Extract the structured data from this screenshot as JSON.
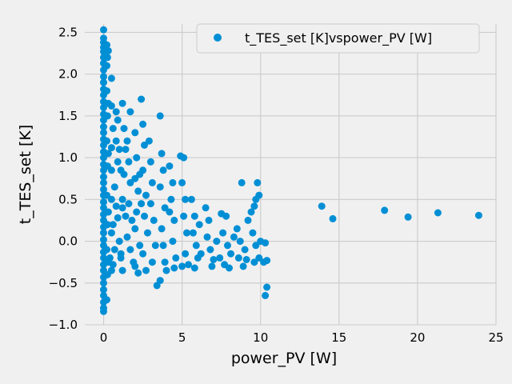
{
  "chart_data": {
    "type": "scatter",
    "title": "",
    "xlabel": "power_PV [W]",
    "ylabel": "t_TES_set [K]",
    "xlim": [
      -1.2,
      25
    ],
    "ylim": [
      -1.0,
      2.6
    ],
    "x_ticks": [
      0,
      5,
      10,
      15,
      20,
      25
    ],
    "y_ticks": [
      -1.0,
      -0.5,
      0.0,
      0.5,
      1.0,
      1.5,
      2.0,
      2.5
    ],
    "x_tick_labels": [
      "0",
      "5",
      "10",
      "15",
      "20",
      "25"
    ],
    "y_tick_labels": [
      "−1.0",
      "−0.5",
      "0.0",
      "0.5",
      "1.0",
      "1.5",
      "2.0",
      "2.5"
    ],
    "grid": true,
    "legend_position": "top-right",
    "background_color": "#f0f0f0",
    "series": [
      {
        "name": "t_TES_set [K]vspower_PV [W]",
        "color": "#008fd5",
        "points": [
          [
            0.0,
            2.53
          ],
          [
            0.0,
            2.43
          ],
          [
            0.0,
            2.38
          ],
          [
            0.0,
            2.32
          ],
          [
            0.0,
            2.27
          ],
          [
            0.0,
            2.2
          ],
          [
            0.0,
            2.13
          ],
          [
            0.0,
            2.05
          ],
          [
            0.0,
            1.97
          ],
          [
            0.0,
            1.9
          ],
          [
            0.0,
            1.82
          ],
          [
            0.0,
            1.75
          ],
          [
            0.0,
            1.67
          ],
          [
            0.0,
            1.6
          ],
          [
            0.0,
            1.52
          ],
          [
            0.0,
            1.45
          ],
          [
            0.0,
            1.37
          ],
          [
            0.0,
            1.3
          ],
          [
            0.0,
            1.22
          ],
          [
            0.0,
            1.15
          ],
          [
            0.0,
            1.07
          ],
          [
            0.0,
            1.0
          ],
          [
            0.0,
            0.92
          ],
          [
            0.0,
            0.85
          ],
          [
            0.0,
            0.77
          ],
          [
            0.0,
            0.7
          ],
          [
            0.0,
            0.62
          ],
          [
            0.0,
            0.55
          ],
          [
            0.0,
            0.47
          ],
          [
            0.0,
            0.4
          ],
          [
            0.0,
            0.32
          ],
          [
            0.0,
            0.25
          ],
          [
            0.0,
            0.17
          ],
          [
            0.0,
            0.1
          ],
          [
            0.0,
            0.02
          ],
          [
            0.0,
            -0.05
          ],
          [
            0.0,
            -0.13
          ],
          [
            0.0,
            -0.2
          ],
          [
            0.0,
            -0.28
          ],
          [
            0.0,
            -0.35
          ],
          [
            0.0,
            -0.43
          ],
          [
            0.0,
            -0.5
          ],
          [
            0.0,
            -0.58
          ],
          [
            0.0,
            -0.65
          ],
          [
            0.0,
            -0.73
          ],
          [
            0.0,
            -0.8
          ],
          [
            0.0,
            -0.84
          ],
          [
            0.2,
            2.35
          ],
          [
            0.2,
            2.1
          ],
          [
            0.2,
            1.8
          ],
          [
            0.25,
            1.5
          ],
          [
            0.2,
            1.2
          ],
          [
            0.25,
            0.9
          ],
          [
            0.2,
            0.55
          ],
          [
            0.25,
            0.2
          ],
          [
            0.2,
            -0.1
          ],
          [
            0.25,
            -0.4
          ],
          [
            0.2,
            -0.7
          ],
          [
            0.25,
            2.2
          ],
          [
            0.3,
            1.65
          ],
          [
            0.3,
            1.05
          ],
          [
            0.3,
            0.35
          ],
          [
            0.3,
            -0.25
          ],
          [
            0.3,
            2.28
          ],
          [
            0.5,
            1.95
          ],
          [
            0.5,
            1.62
          ],
          [
            0.6,
            1.35
          ],
          [
            0.5,
            1.12
          ],
          [
            0.5,
            0.85
          ],
          [
            0.5,
            0.5
          ],
          [
            0.5,
            0.1
          ],
          [
            0.4,
            -0.2
          ],
          [
            0.5,
            -0.35
          ],
          [
            0.8,
            1.55
          ],
          [
            0.8,
            1.2
          ],
          [
            0.9,
            0.95
          ],
          [
            0.7,
            0.65
          ],
          [
            0.8,
            0.42
          ],
          [
            0.6,
            0.2
          ],
          [
            0.7,
            -0.1
          ],
          [
            0.6,
            -0.28
          ],
          [
            0.9,
            1.45
          ],
          [
            1.0,
            1.1
          ],
          [
            1.1,
            0.85
          ],
          [
            0.9,
            0.28
          ],
          [
            1.0,
            0.0
          ],
          [
            1.1,
            -0.2
          ],
          [
            1.2,
            0.4
          ],
          [
            1.2,
            1.65
          ],
          [
            1.3,
            1.35
          ],
          [
            1.4,
            1.1
          ],
          [
            1.3,
            0.8
          ],
          [
            1.2,
            0.5
          ],
          [
            1.4,
            0.3
          ],
          [
            1.5,
            0.05
          ],
          [
            1.2,
            -0.35
          ],
          [
            1.1,
            -0.15
          ],
          [
            1.5,
            1.2
          ],
          [
            1.6,
            0.95
          ],
          [
            1.7,
            0.7
          ],
          [
            1.6,
            0.45
          ],
          [
            1.8,
            0.25
          ],
          [
            1.7,
            -0.1
          ],
          [
            1.9,
            -0.25
          ],
          [
            1.7,
            1.55
          ],
          [
            2.0,
            1.3
          ],
          [
            2.1,
            1.0
          ],
          [
            2.0,
            0.75
          ],
          [
            2.2,
            0.6
          ],
          [
            2.1,
            0.35
          ],
          [
            2.0,
            0.15
          ],
          [
            2.3,
            -0.05
          ],
          [
            2.0,
            -0.3
          ],
          [
            2.2,
            -0.38
          ],
          [
            2.4,
            1.7
          ],
          [
            2.5,
            1.4
          ],
          [
            2.6,
            1.15
          ],
          [
            2.5,
            0.85
          ],
          [
            2.7,
            0.55
          ],
          [
            2.6,
            0.3
          ],
          [
            2.8,
            0.1
          ],
          [
            2.5,
            -0.15
          ],
          [
            2.7,
            -0.35
          ],
          [
            2.4,
            0.45
          ],
          [
            2.3,
            0.8
          ],
          [
            2.9,
            1.2
          ],
          [
            3.0,
            0.95
          ],
          [
            3.1,
            0.7
          ],
          [
            3.0,
            0.45
          ],
          [
            3.2,
            0.25
          ],
          [
            3.3,
            -0.05
          ],
          [
            3.1,
            -0.25
          ],
          [
            3.4,
            -0.53
          ],
          [
            3.6,
            1.5
          ],
          [
            3.7,
            1.05
          ],
          [
            3.8,
            0.85
          ],
          [
            3.6,
            0.65
          ],
          [
            3.9,
            0.4
          ],
          [
            3.7,
            0.15
          ],
          [
            3.8,
            -0.05
          ],
          [
            3.9,
            -0.25
          ],
          [
            4.0,
            -0.35
          ],
          [
            3.6,
            -0.47
          ],
          [
            4.2,
            0.9
          ],
          [
            4.4,
            0.7
          ],
          [
            4.3,
            0.5
          ],
          [
            4.5,
            0.25
          ],
          [
            4.4,
            0.0
          ],
          [
            4.6,
            -0.2
          ],
          [
            4.5,
            -0.32
          ],
          [
            4.2,
            0.35
          ],
          [
            4.9,
            1.02
          ],
          [
            5.1,
            1.0
          ],
          [
            5.0,
            0.7
          ],
          [
            5.2,
            0.5
          ],
          [
            5.1,
            0.3
          ],
          [
            5.3,
            0.1
          ],
          [
            5.2,
            -0.15
          ],
          [
            5.4,
            -0.28
          ],
          [
            5.0,
            -0.3
          ],
          [
            5.6,
            0.5
          ],
          [
            5.8,
            0.3
          ],
          [
            5.7,
            0.1
          ],
          [
            5.9,
            -0.05
          ],
          [
            6.0,
            -0.2
          ],
          [
            5.8,
            -0.32
          ],
          [
            6.1,
            0.2
          ],
          [
            6.2,
            -0.15
          ],
          [
            6.5,
            0.4
          ],
          [
            6.7,
            0.25
          ],
          [
            6.6,
            0.05
          ],
          [
            6.8,
            -0.1
          ],
          [
            7.0,
            -0.22
          ],
          [
            6.9,
            -0.3
          ],
          [
            7.2,
            0.0
          ],
          [
            7.4,
            -0.2
          ],
          [
            7.5,
            0.33
          ],
          [
            7.8,
            0.3
          ],
          [
            7.6,
            0.1
          ],
          [
            7.9,
            -0.05
          ],
          [
            8.1,
            -0.15
          ],
          [
            7.7,
            -0.28
          ],
          [
            8.0,
            -0.32
          ],
          [
            8.3,
            0.05
          ],
          [
            8.5,
            0.15
          ],
          [
            8.7,
            0.0
          ],
          [
            8.6,
            -0.2
          ],
          [
            8.9,
            -0.3
          ],
          [
            9.0,
            -0.1
          ],
          [
            8.8,
            0.7
          ],
          [
            9.2,
            0.25
          ],
          [
            9.1,
            -0.22
          ],
          [
            9.4,
            0.35
          ],
          [
            9.6,
            0.42
          ],
          [
            9.7,
            0.5
          ],
          [
            9.8,
            0.7
          ],
          [
            9.9,
            0.55
          ],
          [
            9.5,
            0.1
          ],
          [
            9.7,
            -0.05
          ],
          [
            9.6,
            -0.25
          ],
          [
            9.9,
            -0.2
          ],
          [
            10.0,
            0.0
          ],
          [
            10.2,
            -0.25
          ],
          [
            10.4,
            -0.23
          ],
          [
            10.4,
            -0.55
          ],
          [
            10.3,
            -0.65
          ],
          [
            10.3,
            -0.02
          ],
          [
            13.9,
            0.42
          ],
          [
            14.6,
            0.27
          ],
          [
            17.9,
            0.37
          ],
          [
            19.4,
            0.29
          ],
          [
            21.3,
            0.34
          ],
          [
            23.9,
            0.31
          ]
        ]
      }
    ]
  }
}
